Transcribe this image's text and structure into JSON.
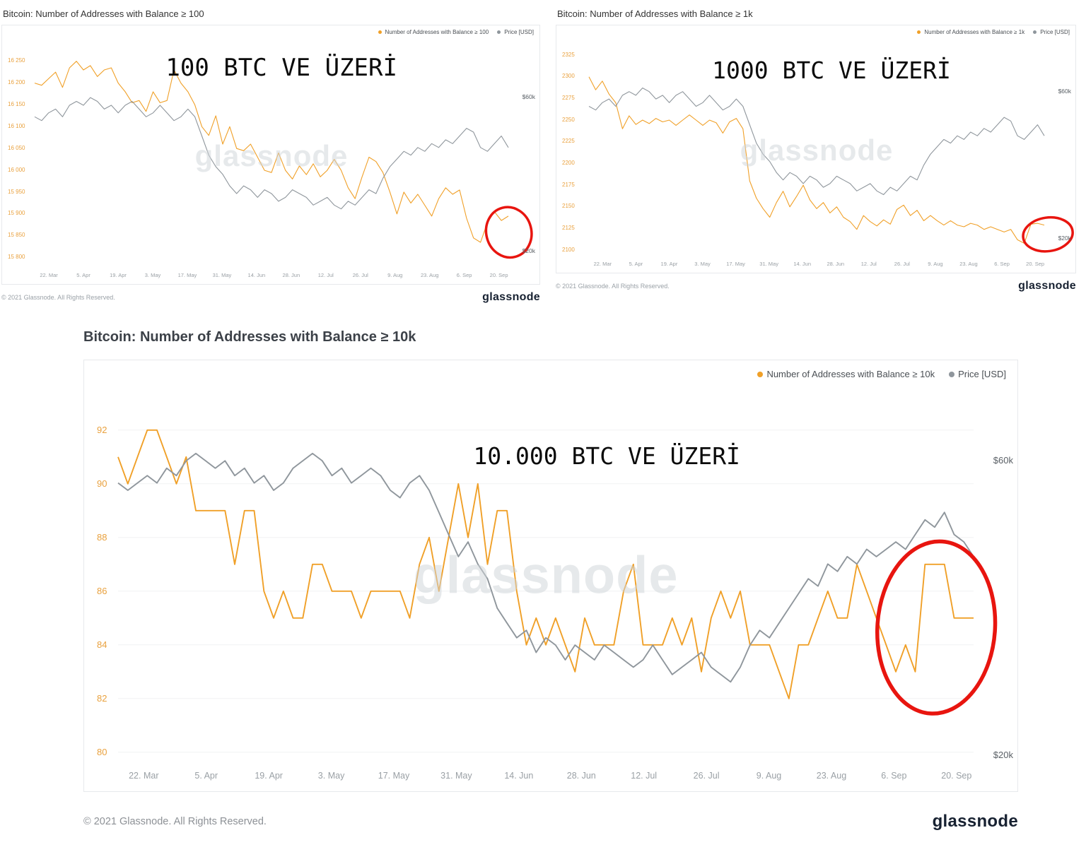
{
  "footer": {
    "copyright": "© 2021 Glassnode. All Rights Reserved.",
    "brand": "glassnode"
  },
  "chart_data": [
    {
      "type": "line",
      "title": "Bitcoin: Number of Addresses with Balance ≥ 100",
      "overlay_label": "100 BTC VE ÜZERİ",
      "watermark": "glassnode",
      "legend_position": "top-right",
      "xlabel": "",
      "ylabel": "",
      "x_ticks": [
        "22. Mar",
        "5. Apr",
        "19. Apr",
        "3. May",
        "17. May",
        "31. May",
        "14. Jun",
        "28. Jun",
        "12. Jul",
        "26. Jul",
        "9. Aug",
        "23. Aug",
        "6. Sep",
        "20. Sep"
      ],
      "y_ticks": [
        {
          "value": 15800,
          "label": "15 800"
        },
        {
          "value": 15850,
          "label": "15 850"
        },
        {
          "value": 15900,
          "label": "15 900"
        },
        {
          "value": 15950,
          "label": "15 950"
        },
        {
          "value": 16000,
          "label": "16 000"
        },
        {
          "value": 16050,
          "label": "16 050"
        },
        {
          "value": 16100,
          "label": "16 100"
        },
        {
          "value": 16150,
          "label": "16 150"
        },
        {
          "value": 16200,
          "label": "16 200"
        },
        {
          "value": 16250,
          "label": "16 250"
        }
      ],
      "ylim": [
        15775,
        16290
      ],
      "price_ylim": [
        15.5,
        74
      ],
      "right_labels": [
        {
          "label": "$60k",
          "value": 60
        },
        {
          "label": "$20k",
          "value": 20
        }
      ],
      "series": [
        {
          "name": "Number of Addresses with Balance ≥ 100",
          "color": "#f0a028",
          "axis": "left",
          "values": [
            16200,
            16195,
            16210,
            16225,
            16190,
            16235,
            16250,
            16230,
            16240,
            16215,
            16230,
            16235,
            16200,
            16180,
            16155,
            16160,
            16135,
            16180,
            16155,
            16160,
            16230,
            16200,
            16180,
            16150,
            16100,
            16080,
            16125,
            16060,
            16100,
            16050,
            16045,
            16060,
            16030,
            16000,
            15995,
            16040,
            16000,
            15980,
            16010,
            15990,
            16015,
            15985,
            16000,
            16025,
            16000,
            15960,
            15935,
            15985,
            16030,
            16020,
            15995,
            15950,
            15900,
            15950,
            15925,
            15945,
            15920,
            15895,
            15935,
            15960,
            15945,
            15955,
            15890,
            15845,
            15835,
            15880,
            15905,
            15885,
            15895
          ]
        },
        {
          "name": "Price [USD]",
          "color": "#8f969c",
          "axis": "right",
          "values": [
            55,
            54,
            56,
            57,
            55,
            58,
            59,
            58,
            60,
            59,
            57,
            58,
            56,
            58,
            59,
            57,
            55,
            56,
            58,
            56,
            54,
            55,
            57,
            55,
            50,
            45,
            42,
            40,
            37,
            35,
            37,
            36,
            34,
            36,
            35,
            33,
            34,
            36,
            35,
            34,
            32,
            33,
            34,
            32,
            31,
            33,
            32,
            34,
            36,
            35,
            39,
            42,
            44,
            46,
            45,
            47,
            46,
            48,
            47,
            49,
            48,
            50,
            52,
            51,
            47,
            46,
            48,
            50,
            47
          ]
        }
      ],
      "annotation": {
        "type": "ellipse",
        "color": "#e8150f",
        "cx": 0.943,
        "cy": 0.8,
        "rx": 0.042,
        "ry": 0.098,
        "rotate": -15
      }
    },
    {
      "type": "line",
      "title": "Bitcoin: Number of Addresses with Balance ≥ 1k",
      "overlay_label": "1000 BTC VE ÜZERİ",
      "watermark": "glassnode",
      "legend_position": "top-right",
      "xlabel": "",
      "ylabel": "",
      "x_ticks": [
        "22. Mar",
        "5. Apr",
        "19. Apr",
        "3. May",
        "17. May",
        "31. May",
        "14. Jun",
        "28. Jun",
        "12. Jul",
        "26. Jul",
        "9. Aug",
        "23. Aug",
        "6. Sep",
        "20. Sep"
      ],
      "y_ticks": [
        {
          "value": 2100,
          "label": "2100"
        },
        {
          "value": 2125,
          "label": "2125"
        },
        {
          "value": 2150,
          "label": "2150"
        },
        {
          "value": 2175,
          "label": "2175"
        },
        {
          "value": 2200,
          "label": "2200"
        },
        {
          "value": 2225,
          "label": "2225"
        },
        {
          "value": 2250,
          "label": "2250"
        },
        {
          "value": 2275,
          "label": "2275"
        },
        {
          "value": 2300,
          "label": "2300"
        },
        {
          "value": 2325,
          "label": "2325"
        }
      ],
      "ylim": [
        2092,
        2338
      ],
      "price_ylim": [
        15,
        73
      ],
      "right_labels": [
        {
          "label": "$60k",
          "value": 60
        },
        {
          "label": "$20k",
          "value": 20
        }
      ],
      "series": [
        {
          "name": "Number of Addresses with Balance ≥ 1k",
          "color": "#f0a028",
          "axis": "left",
          "values": [
            2300,
            2285,
            2295,
            2280,
            2270,
            2240,
            2255,
            2245,
            2250,
            2246,
            2252,
            2248,
            2250,
            2244,
            2250,
            2256,
            2250,
            2244,
            2250,
            2247,
            2235,
            2248,
            2252,
            2240,
            2180,
            2160,
            2148,
            2138,
            2155,
            2168,
            2150,
            2162,
            2175,
            2158,
            2148,
            2155,
            2143,
            2150,
            2138,
            2133,
            2124,
            2140,
            2133,
            2128,
            2135,
            2130,
            2147,
            2152,
            2140,
            2146,
            2134,
            2140,
            2134,
            2129,
            2134,
            2129,
            2127,
            2131,
            2129,
            2124,
            2127,
            2124,
            2121,
            2124,
            2112,
            2108,
            2130,
            2131,
            2129
          ]
        },
        {
          "name": "Price [USD]",
          "color": "#8f969c",
          "axis": "right",
          "values": [
            56,
            55,
            57,
            58,
            56,
            59,
            60,
            59,
            61,
            60,
            58,
            59,
            57,
            59,
            60,
            58,
            56,
            57,
            59,
            57,
            55,
            56,
            58,
            56,
            51,
            46,
            43,
            41,
            38,
            36,
            38,
            37,
            35,
            37,
            36,
            34,
            35,
            37,
            36,
            35,
            33,
            34,
            35,
            33,
            32,
            34,
            33,
            35,
            37,
            36,
            40,
            43,
            45,
            47,
            46,
            48,
            47,
            49,
            48,
            50,
            49,
            51,
            53,
            52,
            48,
            47,
            49,
            51,
            48
          ]
        }
      ],
      "annotation": {
        "type": "ellipse",
        "color": "#e8150f",
        "cx": 0.947,
        "cy": 0.845,
        "rx": 0.048,
        "ry": 0.068,
        "rotate": -8
      }
    },
    {
      "type": "line",
      "title": "Bitcoin: Number of Addresses with Balance ≥ 10k",
      "overlay_label": "10.000 BTC VE ÜZERİ",
      "watermark": "glassnode",
      "legend_position": "top-right",
      "xlabel": "",
      "ylabel": "",
      "x_ticks": [
        "22. Mar",
        "5. Apr",
        "19. Apr",
        "3. May",
        "17. May",
        "31. May",
        "14. Jun",
        "28. Jun",
        "12. Jul",
        "26. Jul",
        "9. Aug",
        "23. Aug",
        "6. Sep",
        "20. Sep"
      ],
      "y_ticks": [
        {
          "value": 80,
          "label": "80"
        },
        {
          "value": 82,
          "label": "82"
        },
        {
          "value": 84,
          "label": "84"
        },
        {
          "value": 86,
          "label": "86"
        },
        {
          "value": 88,
          "label": "88"
        },
        {
          "value": 90,
          "label": "90"
        },
        {
          "value": 92,
          "label": "92"
        }
      ],
      "ylim": [
        79.6,
        93.6
      ],
      "price_ylim": [
        19,
        70
      ],
      "right_labels": [
        {
          "label": "$60k",
          "value": 60
        },
        {
          "label": "$20k",
          "value": 20
        }
      ],
      "series": [
        {
          "name": "Number of Addresses with Balance ≥ 10k",
          "color": "#f0a028",
          "axis": "left",
          "values": [
            91,
            90,
            91,
            92,
            92,
            91,
            90,
            91,
            89,
            89,
            89,
            89,
            87,
            89,
            89,
            86,
            85,
            86,
            85,
            85,
            87,
            87,
            86,
            86,
            86,
            85,
            86,
            86,
            86,
            86,
            85,
            87,
            88,
            86,
            88,
            90,
            88,
            90,
            87,
            89,
            89,
            86,
            84,
            85,
            84,
            85,
            84,
            83,
            85,
            84,
            84,
            84,
            86,
            87,
            84,
            84,
            84,
            85,
            84,
            85,
            83,
            85,
            86,
            85,
            86,
            84,
            84,
            84,
            83,
            82,
            84,
            84,
            85,
            86,
            85,
            85,
            87,
            86,
            85,
            84,
            83,
            84,
            83,
            87,
            87,
            87,
            85,
            85,
            85
          ]
        },
        {
          "name": "Price [USD]",
          "color": "#8f969c",
          "axis": "right",
          "values": [
            57,
            56,
            57,
            58,
            57,
            59,
            58,
            60,
            61,
            60,
            59,
            60,
            58,
            59,
            57,
            58,
            56,
            57,
            59,
            60,
            61,
            60,
            58,
            59,
            57,
            58,
            59,
            58,
            56,
            55,
            57,
            58,
            56,
            53,
            50,
            47,
            49,
            46,
            44,
            40,
            38,
            36,
            37,
            34,
            36,
            35,
            33,
            35,
            34,
            33,
            35,
            34,
            33,
            32,
            33,
            35,
            33,
            31,
            32,
            33,
            34,
            32,
            31,
            30,
            32,
            35,
            37,
            36,
            38,
            40,
            42,
            44,
            43,
            46,
            45,
            47,
            46,
            48,
            47,
            48,
            49,
            48,
            50,
            52,
            51,
            53,
            50,
            49,
            47
          ]
        }
      ],
      "annotation": {
        "type": "ellipse",
        "color": "#e8150f",
        "cx": 0.913,
        "cy": 0.62,
        "rx": 0.063,
        "ry": 0.2,
        "rotate": 4
      }
    }
  ]
}
